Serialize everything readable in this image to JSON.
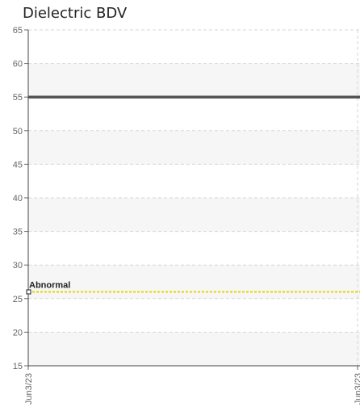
{
  "chart_data": {
    "type": "line",
    "title": "Dielectric BDV",
    "xlabel": "",
    "ylabel": "",
    "ylim": [
      15,
      65
    ],
    "y_ticks": [
      15,
      20,
      25,
      30,
      35,
      40,
      45,
      50,
      55,
      60,
      65
    ],
    "x_tick_labels": [
      "Jun3/23",
      "Jun3/23"
    ],
    "grid": true,
    "series": [
      {
        "values": [
          55,
          55
        ],
        "color": "#555555"
      }
    ],
    "thresholds": [
      {
        "label": "Abnormal",
        "value": 26,
        "color": "#e8d400"
      }
    ]
  }
}
